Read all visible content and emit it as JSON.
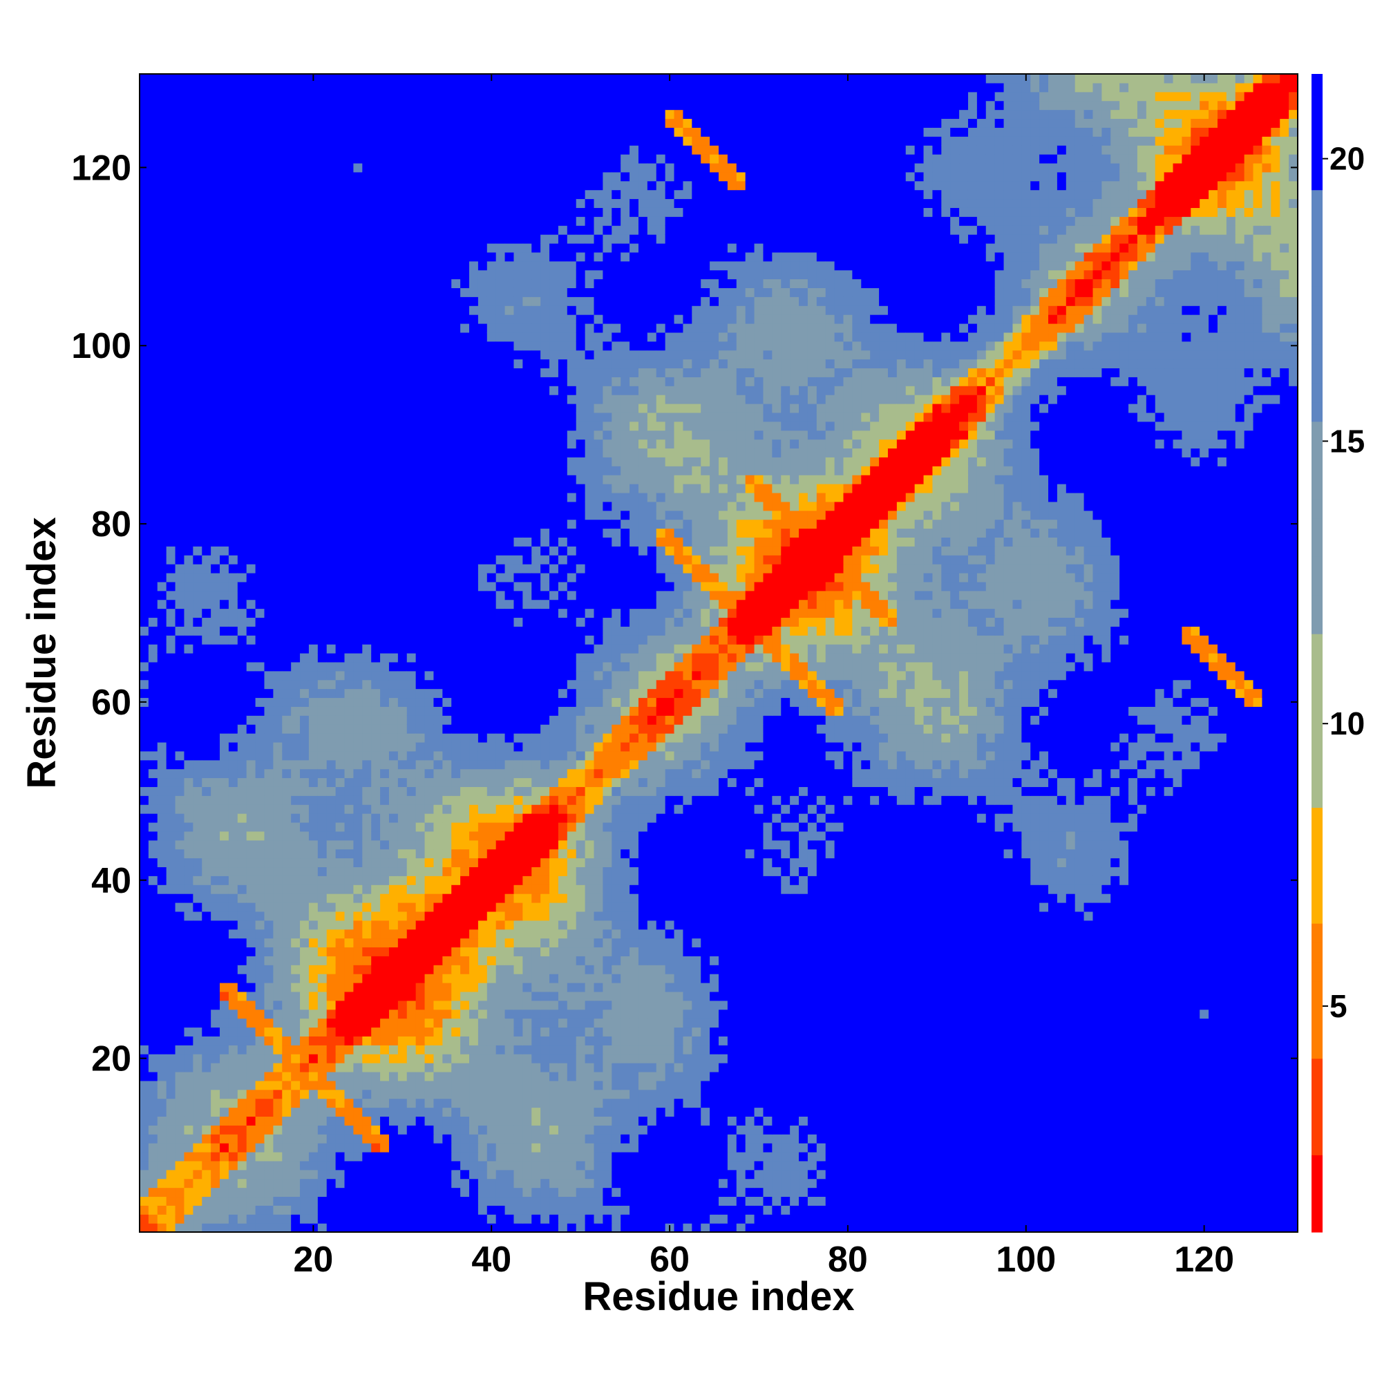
{
  "chart_data": {
    "type": "heatmap",
    "title": "",
    "xlabel": "Residue index",
    "ylabel": "Residue index",
    "n_residues": 130,
    "xlim": [
      1,
      130
    ],
    "ylim": [
      1,
      130
    ],
    "x_ticks": [
      "20",
      "40",
      "60",
      "80",
      "100",
      "120"
    ],
    "x_tick_values": [
      20,
      40,
      60,
      80,
      100,
      120
    ],
    "y_ticks": [
      "20",
      "40",
      "60",
      "80",
      "100",
      "120"
    ],
    "y_tick_values": [
      20,
      40,
      60,
      80,
      100,
      120
    ],
    "colorbar": {
      "range": [
        1,
        21.5
      ],
      "ticks": [
        "5",
        "10",
        "15",
        "20"
      ],
      "tick_values": [
        5,
        10,
        15,
        20
      ]
    },
    "colors": {
      "very_near": "#ff0000",
      "near": "#ff4000",
      "close": "#ff7f00",
      "contact_edge": "#ffb000",
      "mid_green": "#a8bc8c",
      "mid_grayblue": "#7f9cb0",
      "far": "#5f86c2",
      "max": "#0000ff"
    },
    "contact_bands": [
      {
        "type": "diagonal",
        "note": "main diagonal i=j"
      },
      {
        "type": "antiparallel",
        "i_range": [
          10,
          28
        ],
        "j_range": [
          10,
          28
        ]
      },
      {
        "type": "antiparallel",
        "i_range": [
          58,
          80
        ],
        "j_range": [
          58,
          80
        ]
      },
      {
        "type": "antiparallel",
        "i_range": [
          60,
          78
        ],
        "j_range": [
          118,
          126
        ]
      }
    ]
  }
}
